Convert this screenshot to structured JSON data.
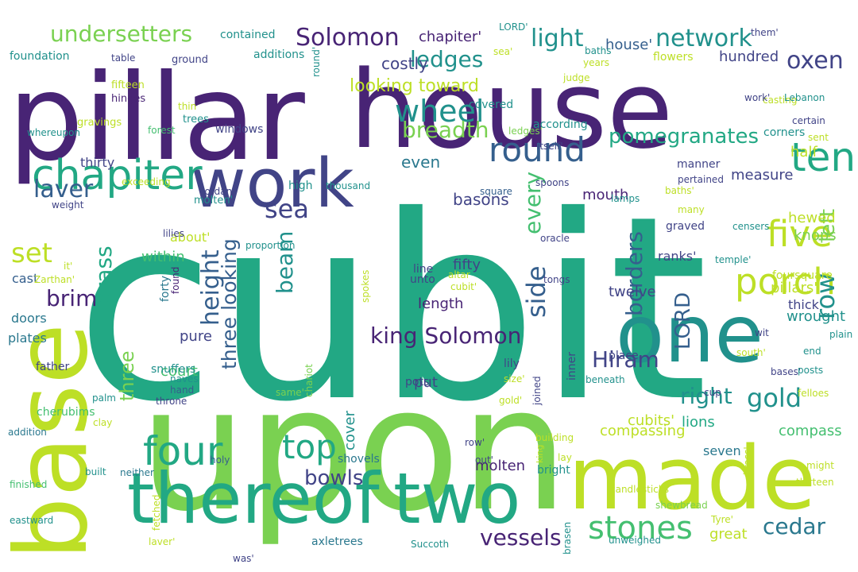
{
  "wordcloud": {
    "palette": {
      "dark_purple": "#482475",
      "indigo": "#414487",
      "blue": "#355f8d",
      "teal": "#2a788e",
      "sea": "#21918c",
      "green": "#22a884",
      "lime": "#44bf70",
      "light_green": "#7ad151",
      "yellow_green": "#bddf26",
      "yellow": "#fde725"
    },
    "words": [
      {
        "id": "cubit-big",
        "text": "cubit",
        "color": "#22a884"
      },
      {
        "id": "upon",
        "text": "upon",
        "color": "#7ad151"
      },
      {
        "id": "pillar",
        "text": "pillar",
        "color": "#482475"
      },
      {
        "id": "house-big",
        "text": "house",
        "color": "#482475"
      },
      {
        "id": "base",
        "text": "base",
        "color": "#bddf26"
      },
      {
        "id": "made",
        "text": "made",
        "color": "#bddf26"
      },
      {
        "id": "one",
        "text": "one",
        "color": "#21918c"
      },
      {
        "id": "thereof",
        "text": "thereof",
        "color": "#22a884"
      },
      {
        "id": "two",
        "text": "two",
        "color": "#22a884"
      },
      {
        "id": "work",
        "text": "work",
        "color": "#414487"
      },
      {
        "id": "chapiter",
        "text": "chapiter",
        "color": "#22a884"
      },
      {
        "id": "four",
        "text": "four",
        "color": "#22a884"
      },
      {
        "id": "ten",
        "text": "ten",
        "color": "#22a884"
      },
      {
        "id": "five",
        "text": "five",
        "color": "#bddf26"
      },
      {
        "id": "porch",
        "text": "porch",
        "color": "#bddf26"
      },
      {
        "id": "top",
        "text": "top",
        "color": "#22a884"
      },
      {
        "id": "stones",
        "text": "stones",
        "color": "#44bf70"
      },
      {
        "id": "network",
        "text": "network",
        "color": "#21918c"
      },
      {
        "id": "round",
        "text": "round",
        "color": "#355f8d"
      },
      {
        "id": "wheel",
        "text": "wheel",
        "color": "#21918c"
      },
      {
        "id": "undersetters",
        "text": "undersetters",
        "color": "#7ad151"
      },
      {
        "id": "solomon",
        "text": "Solomon",
        "color": "#482475"
      },
      {
        "id": "oxen",
        "text": "oxen",
        "color": "#414487"
      },
      {
        "id": "light",
        "text": "light",
        "color": "#21918c"
      },
      {
        "id": "ledges",
        "text": "ledges",
        "color": "#21918c"
      },
      {
        "id": "laver",
        "text": "laver",
        "color": "#355f8d"
      },
      {
        "id": "sea",
        "text": "sea",
        "color": "#414487"
      },
      {
        "id": "height",
        "text": "height",
        "color": "#355f8d"
      },
      {
        "id": "breadth",
        "text": "breadth",
        "color": "#7ad151"
      },
      {
        "id": "pomegranates",
        "text": "pomegranates",
        "color": "#22a884"
      },
      {
        "id": "king-solomon",
        "text": "king Solomon",
        "color": "#482475"
      },
      {
        "id": "gold",
        "text": "gold",
        "color": "#21918c"
      },
      {
        "id": "row",
        "text": "row",
        "color": "#21918c"
      },
      {
        "id": "brass",
        "text": "brass",
        "color": "#22a884"
      },
      {
        "id": "set",
        "text": "set",
        "color": "#bddf26"
      },
      {
        "id": "brim",
        "text": "brim",
        "color": "#482475"
      },
      {
        "id": "beam",
        "text": "beam",
        "color": "#21918c"
      },
      {
        "id": "three-looking",
        "text": "three looking",
        "color": "#355f8d"
      },
      {
        "id": "three",
        "text": "three",
        "color": "#7ad151"
      },
      {
        "id": "borders",
        "text": "borders",
        "color": "#355f8d"
      },
      {
        "id": "side",
        "text": "side",
        "color": "#355f8d"
      },
      {
        "id": "every",
        "text": "every",
        "color": "#44bf70"
      },
      {
        "id": "right",
        "text": "right",
        "color": "#21918c"
      },
      {
        "id": "hiram",
        "text": "Hiram",
        "color": "#414487"
      },
      {
        "id": "cedar",
        "text": "cedar",
        "color": "#2a788e"
      },
      {
        "id": "left",
        "text": "left",
        "color": "#7ad151"
      },
      {
        "id": "vessels",
        "text": "vessels",
        "color": "#482475"
      },
      {
        "id": "bowls",
        "text": "bowls",
        "color": "#414487"
      },
      {
        "id": "lord-vert",
        "text": "LORD",
        "color": "#355f8d"
      },
      {
        "id": "looking-toward",
        "text": "looking toward",
        "color": "#bddf26"
      },
      {
        "id": "chapiter-q",
        "text": "chapiter'",
        "color": "#482475"
      },
      {
        "id": "costly",
        "text": "costly",
        "color": "#414487"
      },
      {
        "id": "cubits-q",
        "text": "cubits'",
        "color": "#bddf26"
      },
      {
        "id": "hundred",
        "text": "hundred",
        "color": "#414487"
      },
      {
        "id": "half",
        "text": "half",
        "color": "#bddf26"
      },
      {
        "id": "house-q",
        "text": "house'",
        "color": "#355f8d"
      },
      {
        "id": "measure",
        "text": "measure",
        "color": "#414487"
      },
      {
        "id": "hewed",
        "text": "hewed",
        "color": "#bddf26"
      },
      {
        "id": "knops",
        "text": "knops",
        "color": "#7ad151"
      },
      {
        "id": "ranks-q",
        "text": "ranks'",
        "color": "#414487"
      },
      {
        "id": "pillars-q",
        "text": "pillars'",
        "color": "#bddf26"
      },
      {
        "id": "wrought",
        "text": "wrought",
        "color": "#21918c"
      },
      {
        "id": "thick",
        "text": "thick",
        "color": "#414487"
      },
      {
        "id": "compassing",
        "text": "compassing",
        "color": "#bddf26"
      },
      {
        "id": "compass",
        "text": "compass",
        "color": "#44bf70"
      },
      {
        "id": "great",
        "text": "great",
        "color": "#bddf26"
      },
      {
        "id": "lions",
        "text": "lions",
        "color": "#22a884"
      },
      {
        "id": "mouth",
        "text": "mouth",
        "color": "#482475"
      },
      {
        "id": "molten",
        "text": "molten",
        "color": "#482475"
      },
      {
        "id": "twelve",
        "text": "twelve",
        "color": "#414487"
      },
      {
        "id": "seven",
        "text": "seven",
        "color": "#2a788e"
      },
      {
        "id": "fifty",
        "text": "fifty",
        "color": "#414487"
      },
      {
        "id": "length",
        "text": "length",
        "color": "#482475"
      },
      {
        "id": "put",
        "text": "put",
        "color": "#414487"
      },
      {
        "id": "cover",
        "text": "cover",
        "color": "#21918c"
      },
      {
        "id": "basons",
        "text": "basons",
        "color": "#414487"
      },
      {
        "id": "even",
        "text": "even",
        "color": "#2a788e"
      },
      {
        "id": "court",
        "text": "court",
        "color": "#44bf70"
      },
      {
        "id": "pure",
        "text": "pure",
        "color": "#414487"
      },
      {
        "id": "within",
        "text": "within",
        "color": "#44bf70"
      },
      {
        "id": "about-q",
        "text": "about'",
        "color": "#bddf26"
      },
      {
        "id": "cast",
        "text": "cast",
        "color": "#355f8d"
      },
      {
        "id": "doors",
        "text": "doors",
        "color": "#2a788e"
      },
      {
        "id": "plates",
        "text": "plates",
        "color": "#2a788e"
      },
      {
        "id": "thirty",
        "text": "thirty",
        "color": "#414487"
      },
      {
        "id": "foundation",
        "text": "foundation",
        "color": "#21918c"
      },
      {
        "id": "additions",
        "text": "additions",
        "color": "#21918c"
      },
      {
        "id": "contained",
        "text": "contained",
        "color": "#21918c"
      },
      {
        "id": "table",
        "text": "table",
        "color": "#414487"
      },
      {
        "id": "fifteen",
        "text": "fifteen",
        "color": "#bddf26"
      },
      {
        "id": "hinges",
        "text": "hinges",
        "color": "#482475"
      },
      {
        "id": "gravings",
        "text": "gravings",
        "color": "#bddf26"
      },
      {
        "id": "ground",
        "text": "ground",
        "color": "#414487"
      },
      {
        "id": "thin",
        "text": "thin",
        "color": "#bddf26"
      },
      {
        "id": "trees",
        "text": "trees",
        "color": "#21918c"
      },
      {
        "id": "forest",
        "text": "forest",
        "color": "#44bf70"
      },
      {
        "id": "whereupon",
        "text": "whereupon",
        "color": "#21918c"
      },
      {
        "id": "exceeding",
        "text": "exceeding",
        "color": "#bddf26"
      },
      {
        "id": "weight",
        "text": "weight",
        "color": "#414487"
      },
      {
        "id": "windows",
        "text": "windows",
        "color": "#414487"
      },
      {
        "id": "high",
        "text": "high",
        "color": "#21918c"
      },
      {
        "id": "thousand",
        "text": "thousand",
        "color": "#21918c"
      },
      {
        "id": "molten-q",
        "text": "molten'",
        "color": "#21918c"
      },
      {
        "id": "jordan",
        "text": "Jordan",
        "color": "#414487"
      },
      {
        "id": "lilies",
        "text": "lilies",
        "color": "#414487"
      },
      {
        "id": "proportion",
        "text": "proportion",
        "color": "#21918c"
      },
      {
        "id": "it-q",
        "text": "it'",
        "color": "#bddf26"
      },
      {
        "id": "zarthan",
        "text": "Zarthan'",
        "color": "#bddf26"
      },
      {
        "id": "forty",
        "text": "forty",
        "color": "#2a788e"
      },
      {
        "id": "found",
        "text": "found",
        "color": "#482475"
      },
      {
        "id": "altar",
        "text": "altar",
        "color": "#bddf26"
      },
      {
        "id": "cubit-q",
        "text": "cubit'",
        "color": "#bddf26"
      },
      {
        "id": "father",
        "text": "father",
        "color": "#414487"
      },
      {
        "id": "snuffers",
        "text": "snuffers",
        "color": "#21918c"
      },
      {
        "id": "naves",
        "text": "naves",
        "color": "#21918c"
      },
      {
        "id": "hand",
        "text": "hand",
        "color": "#355f8d"
      },
      {
        "id": "throne",
        "text": "throne",
        "color": "#414487"
      },
      {
        "id": "palm",
        "text": "palm",
        "color": "#21918c"
      },
      {
        "id": "cherubims",
        "text": "cherubims",
        "color": "#44bf70"
      },
      {
        "id": "clay",
        "text": "clay",
        "color": "#bddf26"
      },
      {
        "id": "addition",
        "text": "addition",
        "color": "#2a788e"
      },
      {
        "id": "shovels",
        "text": "shovels",
        "color": "#2a788e"
      },
      {
        "id": "finished",
        "text": "finished",
        "color": "#44bf70"
      },
      {
        "id": "neither",
        "text": "neither",
        "color": "#2a788e"
      },
      {
        "id": "fetched",
        "text": "fetched",
        "color": "#bddf26"
      },
      {
        "id": "holy",
        "text": "holy",
        "color": "#355f8d"
      },
      {
        "id": "eastward",
        "text": "eastward",
        "color": "#21918c"
      },
      {
        "id": "laver-q",
        "text": "laver'",
        "color": "#bddf26"
      },
      {
        "id": "axletrees",
        "text": "axletrees",
        "color": "#2a788e"
      },
      {
        "id": "succoth",
        "text": "Succoth",
        "color": "#21918c"
      },
      {
        "id": "row-q",
        "text": "row'",
        "color": "#414487"
      },
      {
        "id": "out-q",
        "text": "out'",
        "color": "#414487"
      },
      {
        "id": "king-v",
        "text": "king",
        "color": "#bddf26"
      },
      {
        "id": "lay",
        "text": "lay",
        "color": "#bddf26"
      },
      {
        "id": "bright",
        "text": "bright",
        "color": "#21918c"
      },
      {
        "id": "brasen",
        "text": "brasen",
        "color": "#21918c"
      },
      {
        "id": "building",
        "text": "building",
        "color": "#bddf26"
      },
      {
        "id": "candlesticks",
        "text": "candlesticks",
        "color": "#bddf26"
      },
      {
        "id": "shewbread",
        "text": "shewbread",
        "color": "#7ad151"
      },
      {
        "id": "unweighed",
        "text": "unweighed",
        "color": "#21918c"
      },
      {
        "id": "tyre-q",
        "text": "Tyre'",
        "color": "#bddf26"
      },
      {
        "id": "brass-q",
        "text": "brass'",
        "color": "#bddf26"
      },
      {
        "id": "might",
        "text": "might",
        "color": "#bddf26"
      },
      {
        "id": "thirteen",
        "text": "thirteen",
        "color": "#bddf26"
      },
      {
        "id": "bases-q",
        "text": "bases'",
        "color": "#414487"
      },
      {
        "id": "felloes",
        "text": "felloes",
        "color": "#bddf26"
      },
      {
        "id": "south-q",
        "text": "south'",
        "color": "#bddf26"
      },
      {
        "id": "wit",
        "text": "wit",
        "color": "#414487"
      },
      {
        "id": "plain",
        "text": "plain",
        "color": "#21918c"
      },
      {
        "id": "end",
        "text": "end",
        "color": "#21918c"
      },
      {
        "id": "posts",
        "text": "posts",
        "color": "#21918c"
      },
      {
        "id": "foursquare",
        "text": "foursquare",
        "color": "#bddf26"
      },
      {
        "id": "temple-q",
        "text": "temple'",
        "color": "#21918c"
      },
      {
        "id": "graved",
        "text": "graved",
        "color": "#414487"
      },
      {
        "id": "censers",
        "text": "censers",
        "color": "#21918c"
      },
      {
        "id": "many",
        "text": "many",
        "color": "#bddf26"
      },
      {
        "id": "pertained",
        "text": "pertained",
        "color": "#414487"
      },
      {
        "id": "baths-q",
        "text": "baths'",
        "color": "#bddf26"
      },
      {
        "id": "lamps",
        "text": "lamps",
        "color": "#21918c"
      },
      {
        "id": "spoons",
        "text": "spoons",
        "color": "#414487"
      },
      {
        "id": "square",
        "text": "square",
        "color": "#355f8d"
      },
      {
        "id": "manner",
        "text": "manner",
        "color": "#414487"
      },
      {
        "id": "oracle",
        "text": "oracle",
        "color": "#414487"
      },
      {
        "id": "tongs",
        "text": "tongs",
        "color": "#414487"
      },
      {
        "id": "pots",
        "text": "pots",
        "color": "#414487"
      },
      {
        "id": "lily",
        "text": "lily",
        "color": "#414487"
      },
      {
        "id": "inner",
        "text": "inner",
        "color": "#414487"
      },
      {
        "id": "beneath",
        "text": "beneath",
        "color": "#21918c"
      },
      {
        "id": "place",
        "text": "place",
        "color": "#414487"
      },
      {
        "id": "cup",
        "text": "cup",
        "color": "#414487"
      },
      {
        "id": "joined",
        "text": "joined",
        "color": "#414487"
      },
      {
        "id": "gold-q",
        "text": "gold'",
        "color": "#bddf26"
      },
      {
        "id": "size-q",
        "text": "size'",
        "color": "#bddf26"
      },
      {
        "id": "same-q",
        "text": "same'",
        "color": "#7ad151"
      },
      {
        "id": "chariot",
        "text": "chariot",
        "color": "#7ad151"
      },
      {
        "id": "spokes",
        "text": "spokes",
        "color": "#bddf26"
      },
      {
        "id": "unto",
        "text": "unto",
        "color": "#414487"
      },
      {
        "id": "according",
        "text": "according",
        "color": "#21918c"
      },
      {
        "id": "covered",
        "text": "covered",
        "color": "#21918c"
      },
      {
        "id": "ledges-q",
        "text": "ledges'",
        "color": "#7ad151"
      },
      {
        "id": "itself-q",
        "text": "itself'",
        "color": "#414487"
      },
      {
        "id": "line",
        "text": "line",
        "color": "#414487"
      },
      {
        "id": "corners",
        "text": "corners",
        "color": "#21918c"
      },
      {
        "id": "casting",
        "text": "casting",
        "color": "#bddf26"
      },
      {
        "id": "lebanon",
        "text": "Lebanon",
        "color": "#21918c"
      },
      {
        "id": "certain",
        "text": "certain",
        "color": "#414487"
      },
      {
        "id": "work-q",
        "text": "work'",
        "color": "#414487"
      },
      {
        "id": "sent",
        "text": "sent",
        "color": "#bddf26"
      },
      {
        "id": "years",
        "text": "years",
        "color": "#bddf26"
      },
      {
        "id": "baths",
        "text": "baths",
        "color": "#21918c"
      },
      {
        "id": "them-q",
        "text": "them'",
        "color": "#414487"
      },
      {
        "id": "flowers",
        "text": "flowers",
        "color": "#bddf26"
      },
      {
        "id": "judge",
        "text": "judge",
        "color": "#bddf26"
      },
      {
        "id": "sea-q",
        "text": "sea'",
        "color": "#bddf26"
      },
      {
        "id": "lord-q",
        "text": "LORD'",
        "color": "#21918c"
      },
      {
        "id": "round-q",
        "text": "round'",
        "color": "#21918c"
      },
      {
        "id": "was-q",
        "text": "was'",
        "color": "#414487"
      },
      {
        "id": "built",
        "text": "built",
        "color": "#21918c"
      }
    ]
  }
}
